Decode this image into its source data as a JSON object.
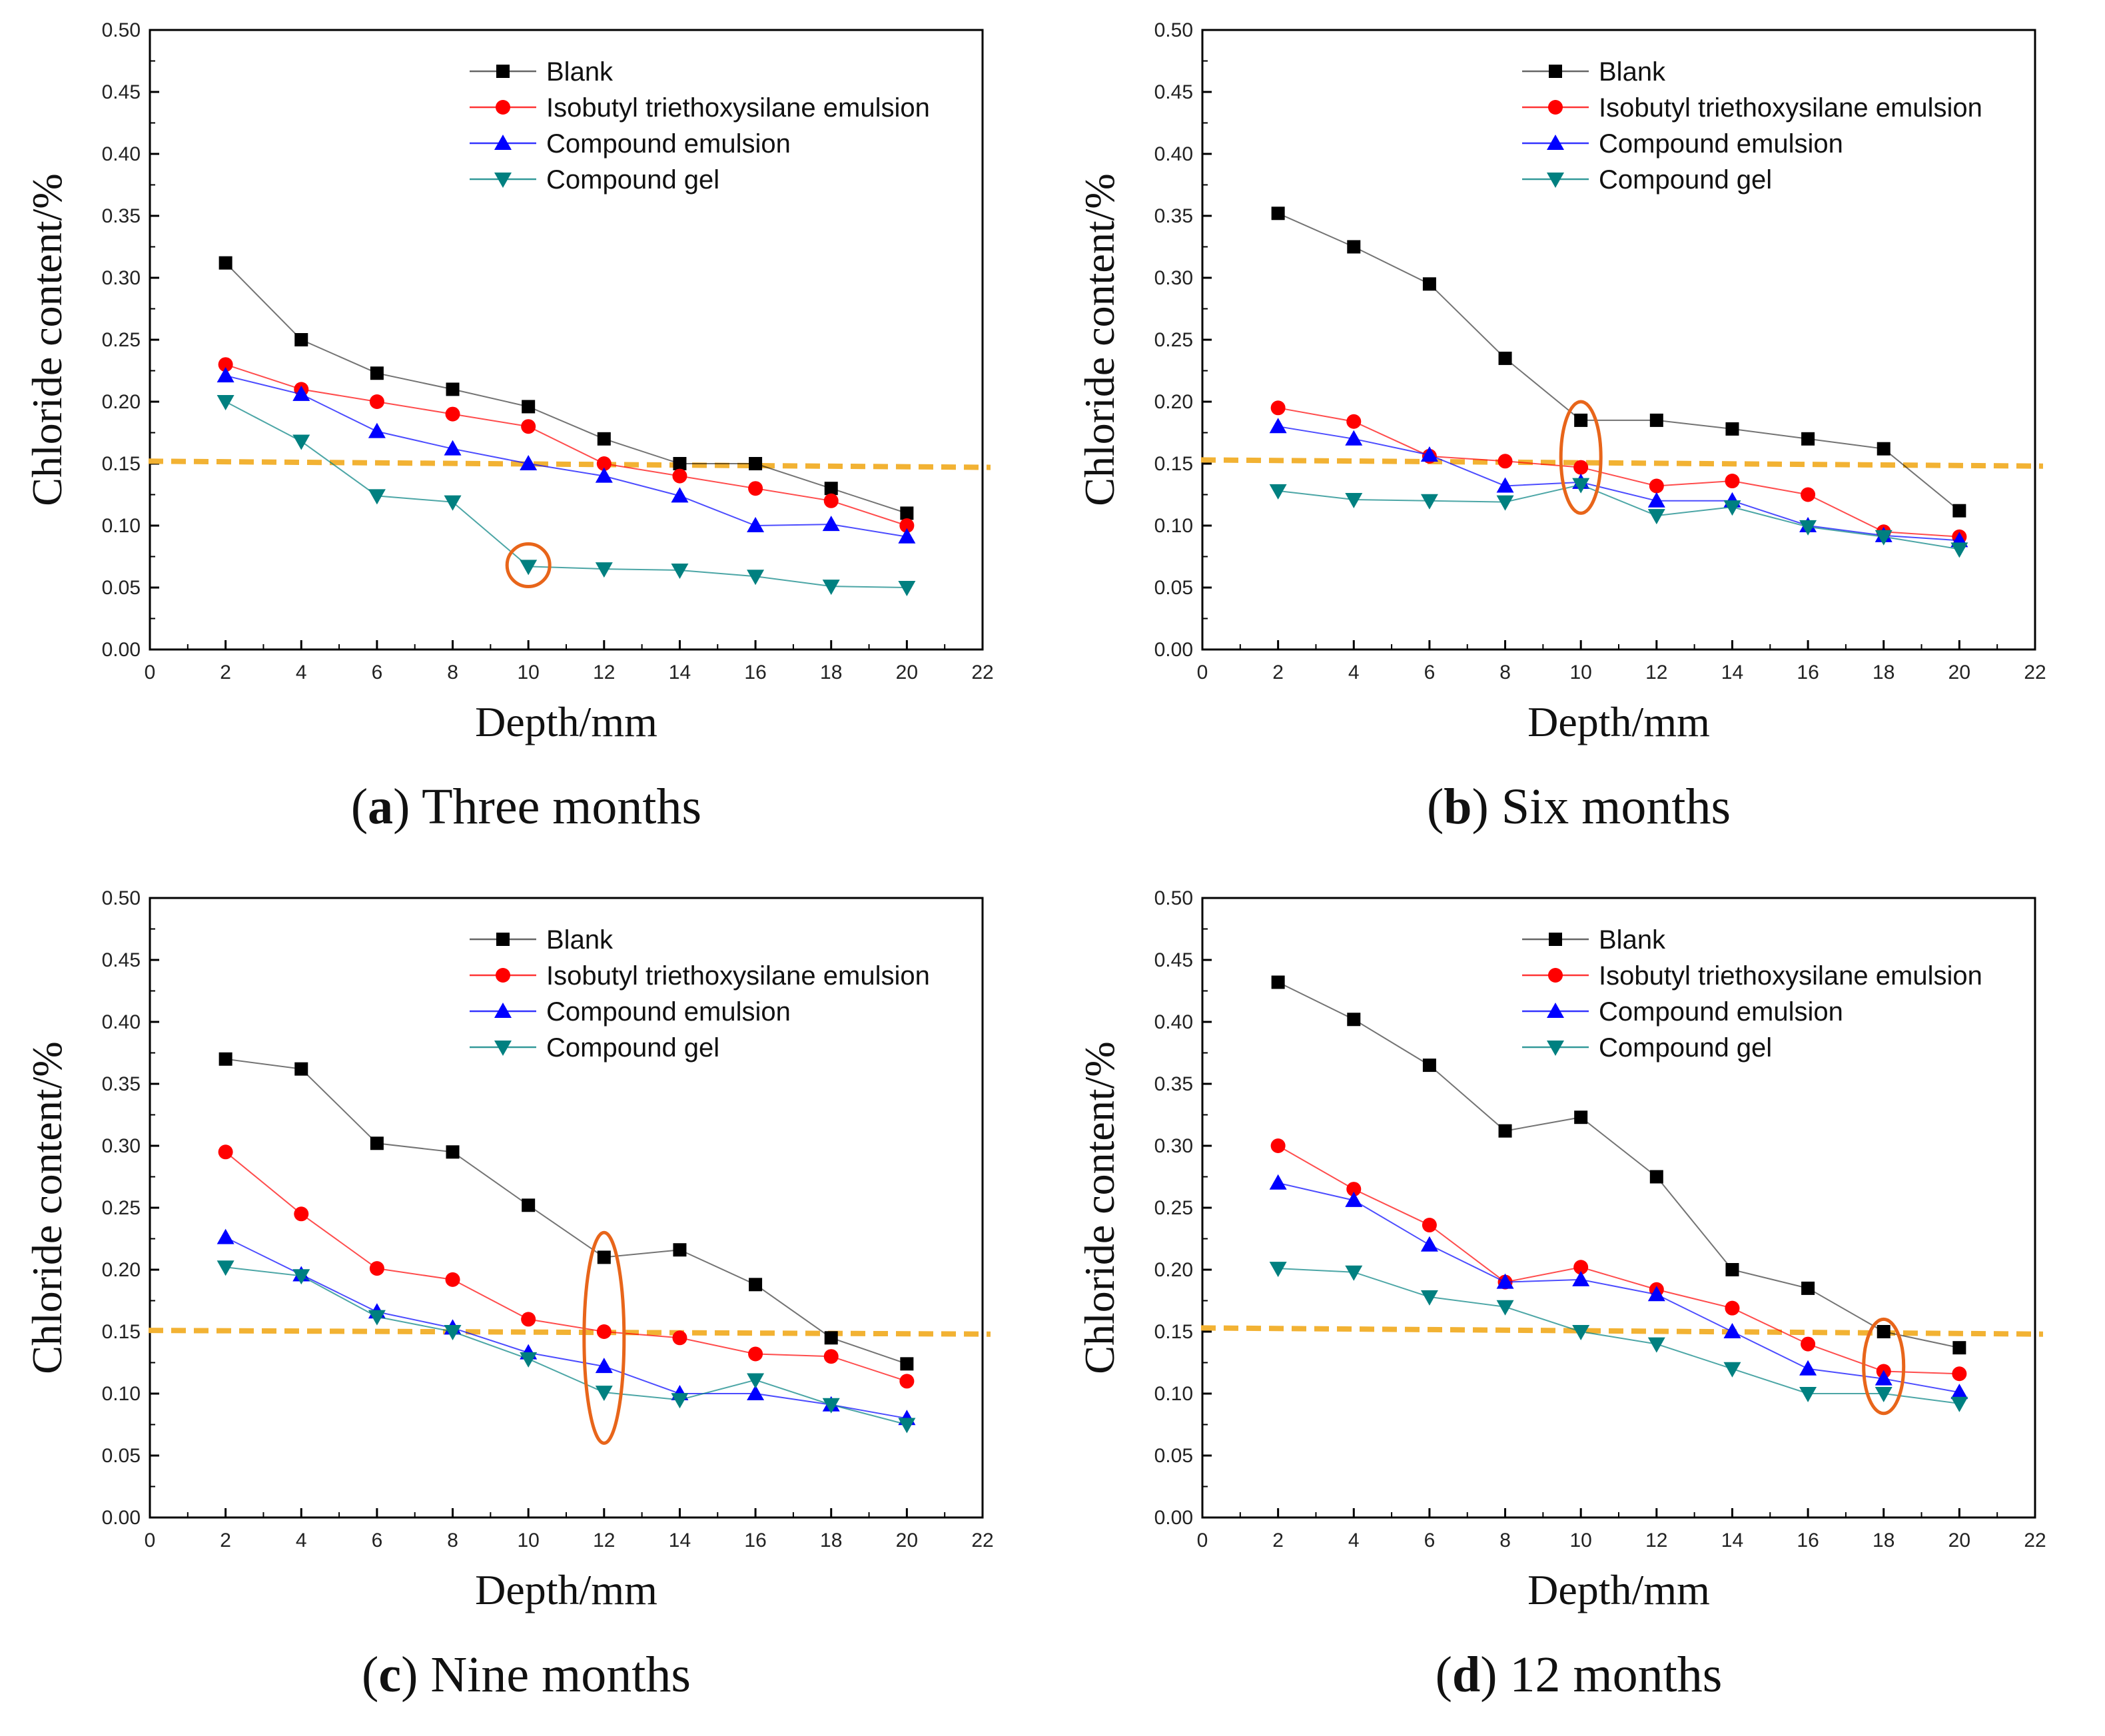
{
  "colors": {
    "blank": "#000000",
    "isobutyl": "#ff0000",
    "compound_emulsion": "#0000ff",
    "compound_gel": "#008080",
    "threshold": "#f2b233",
    "highlight": "#e8651a"
  },
  "legend": [
    "Blank",
    "Isobutyl triethoxysilane emulsion",
    "Compound emulsion",
    "Compound gel"
  ],
  "chart_data": [
    {
      "type": "line",
      "panel_id": "a",
      "caption_letter": "a",
      "caption_text": "Three months",
      "xlabel": "Depth/mm",
      "ylabel": "Chloride content/%",
      "xlim": [
        0,
        22
      ],
      "ylim": [
        0,
        0.5
      ],
      "xticks": [
        "0",
        "2",
        "4",
        "6",
        "8",
        "10",
        "12",
        "14",
        "16",
        "18",
        "20",
        "22"
      ],
      "yticks": [
        "0.00",
        "0.05",
        "0.10",
        "0.15",
        "0.20",
        "0.25",
        "0.30",
        "0.35",
        "0.40",
        "0.45",
        "0.50"
      ],
      "x": [
        2,
        4,
        6,
        8,
        10,
        12,
        14,
        16,
        18,
        20
      ],
      "series": [
        {
          "name": "Blank",
          "values": [
            0.312,
            0.25,
            0.223,
            0.21,
            0.196,
            0.17,
            0.15,
            0.15,
            0.13,
            0.11
          ]
        },
        {
          "name": "Isobutyl triethoxysilane emulsion",
          "values": [
            0.23,
            0.21,
            0.2,
            0.19,
            0.18,
            0.15,
            0.14,
            0.13,
            0.12,
            0.1
          ]
        },
        {
          "name": "Compound emulsion",
          "values": [
            0.221,
            0.206,
            0.176,
            0.162,
            0.15,
            0.14,
            0.124,
            0.1,
            0.101,
            0.091
          ]
        },
        {
          "name": "Compound gel",
          "values": [
            0.2,
            0.168,
            0.124,
            0.119,
            0.067,
            0.065,
            0.064,
            0.059,
            0.051,
            0.05
          ]
        }
      ],
      "threshold": [
        0.152,
        0.147
      ],
      "highlight": {
        "x": 10,
        "y": 0.068,
        "shape": "circle"
      }
    },
    {
      "type": "line",
      "panel_id": "b",
      "caption_letter": "b",
      "caption_text": "Six months",
      "xlabel": "Depth/mm",
      "ylabel": "Chloride content/%",
      "xlim": [
        0,
        22
      ],
      "ylim": [
        0,
        0.5
      ],
      "xticks": [
        "0",
        "2",
        "4",
        "6",
        "8",
        "10",
        "12",
        "14",
        "16",
        "18",
        "20",
        "22"
      ],
      "yticks": [
        "0.00",
        "0.05",
        "0.10",
        "0.15",
        "0.20",
        "0.25",
        "0.30",
        "0.35",
        "0.40",
        "0.45",
        "0.50"
      ],
      "x": [
        2,
        4,
        6,
        8,
        10,
        12,
        14,
        16,
        18,
        20
      ],
      "series": [
        {
          "name": "Blank",
          "values": [
            0.352,
            0.325,
            0.295,
            0.235,
            0.185,
            0.185,
            0.178,
            0.17,
            0.162,
            0.112
          ]
        },
        {
          "name": "Isobutyl triethoxysilane emulsion",
          "values": [
            0.195,
            0.184,
            0.156,
            0.152,
            0.147,
            0.132,
            0.136,
            0.125,
            0.095,
            0.091
          ]
        },
        {
          "name": "Compound emulsion",
          "values": [
            0.18,
            0.17,
            0.157,
            0.132,
            0.135,
            0.12,
            0.12,
            0.1,
            0.092,
            0.088
          ]
        },
        {
          "name": "Compound gel",
          "values": [
            0.128,
            0.121,
            0.12,
            0.119,
            0.133,
            0.108,
            0.115,
            0.099,
            0.091,
            0.081
          ]
        }
      ],
      "threshold": [
        0.153,
        0.148
      ],
      "highlight": {
        "x": 10,
        "y": 0.155,
        "shape": "ellipse",
        "ry": 0.045
      }
    },
    {
      "type": "line",
      "panel_id": "c",
      "caption_letter": "c",
      "caption_text": "Nine months",
      "xlabel": "Depth/mm",
      "ylabel": "Chloride content/%",
      "xlim": [
        0,
        22
      ],
      "ylim": [
        0,
        0.5
      ],
      "xticks": [
        "0",
        "2",
        "4",
        "6",
        "8",
        "10",
        "12",
        "14",
        "16",
        "18",
        "20",
        "22"
      ],
      "yticks": [
        "0.00",
        "0.05",
        "0.10",
        "0.15",
        "0.20",
        "0.25",
        "0.30",
        "0.35",
        "0.40",
        "0.45",
        "0.50"
      ],
      "x": [
        2,
        4,
        6,
        8,
        10,
        12,
        14,
        16,
        18,
        20
      ],
      "series": [
        {
          "name": "Blank",
          "values": [
            0.37,
            0.362,
            0.302,
            0.295,
            0.252,
            0.21,
            0.216,
            0.188,
            0.145,
            0.124
          ]
        },
        {
          "name": "Isobutyl triethoxysilane emulsion",
          "values": [
            0.295,
            0.245,
            0.201,
            0.192,
            0.16,
            0.15,
            0.145,
            0.132,
            0.13,
            0.11
          ]
        },
        {
          "name": "Compound emulsion",
          "values": [
            0.226,
            0.196,
            0.166,
            0.153,
            0.133,
            0.122,
            0.1,
            0.1,
            0.091,
            0.08
          ]
        },
        {
          "name": "Compound gel",
          "values": [
            0.202,
            0.195,
            0.162,
            0.15,
            0.128,
            0.101,
            0.095,
            0.111,
            0.091,
            0.075
          ]
        }
      ],
      "threshold": [
        0.151,
        0.148
      ],
      "highlight": {
        "x": 12,
        "y": 0.145,
        "shape": "ellipse",
        "ry": 0.085
      }
    },
    {
      "type": "line",
      "panel_id": "d",
      "caption_letter": "d",
      "caption_text": "12 months",
      "xlabel": "Depth/mm",
      "ylabel": "Chloride content/%",
      "xlim": [
        0,
        22
      ],
      "ylim": [
        0,
        0.5
      ],
      "xticks": [
        "0",
        "2",
        "4",
        "6",
        "8",
        "10",
        "12",
        "14",
        "16",
        "18",
        "20",
        "22"
      ],
      "yticks": [
        "0.00",
        "0.05",
        "0.10",
        "0.15",
        "0.20",
        "0.25",
        "0.30",
        "0.35",
        "0.40",
        "0.45",
        "0.50"
      ],
      "x": [
        2,
        4,
        6,
        8,
        10,
        12,
        14,
        16,
        18,
        20
      ],
      "series": [
        {
          "name": "Blank",
          "values": [
            0.432,
            0.402,
            0.365,
            0.312,
            0.323,
            0.275,
            0.2,
            0.185,
            0.15,
            0.137
          ]
        },
        {
          "name": "Isobutyl triethoxysilane emulsion",
          "values": [
            0.3,
            0.265,
            0.236,
            0.19,
            0.202,
            0.184,
            0.169,
            0.14,
            0.118,
            0.116
          ]
        },
        {
          "name": "Compound emulsion",
          "values": [
            0.27,
            0.256,
            0.22,
            0.19,
            0.192,
            0.18,
            0.15,
            0.12,
            0.112,
            0.101
          ]
        },
        {
          "name": "Compound gel",
          "values": [
            0.201,
            0.198,
            0.178,
            0.17,
            0.15,
            0.14,
            0.12,
            0.1,
            0.1,
            0.092
          ]
        }
      ],
      "threshold": [
        0.153,
        0.148
      ],
      "highlight": {
        "x": 18,
        "y": 0.122,
        "shape": "ellipse",
        "ry": 0.038
      }
    }
  ]
}
